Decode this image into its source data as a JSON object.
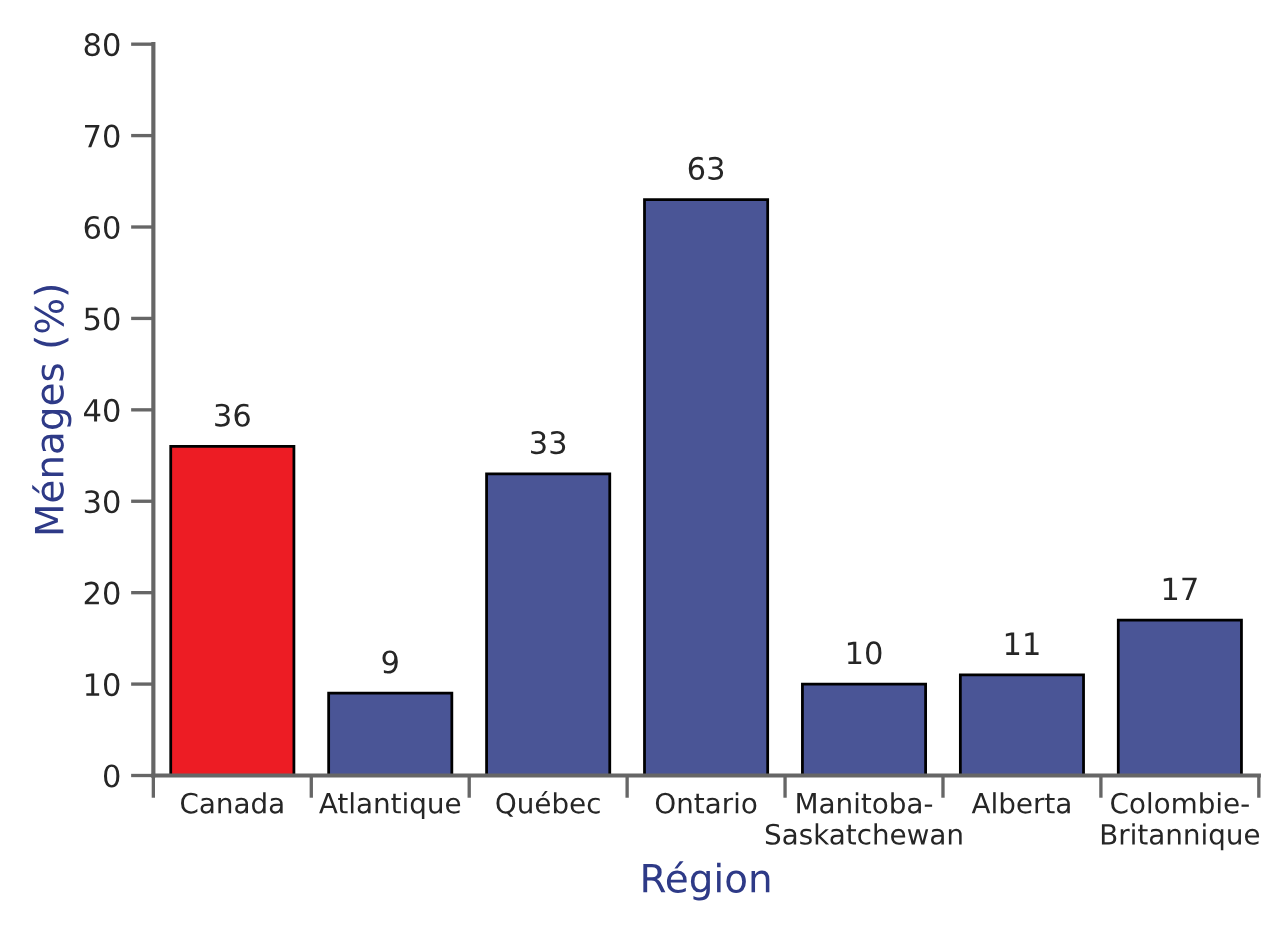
{
  "chart_data": {
    "type": "bar",
    "xlabel": "Région",
    "ylabel": "Ménages (%)",
    "categories": [
      "Canada",
      "Atlantique",
      "Québec",
      "Ontario",
      "Manitoba-\nSaskatchewan",
      "Alberta",
      "Colombie-\nBritannique"
    ],
    "values": [
      36,
      9,
      33,
      63,
      10,
      11,
      17
    ],
    "colors": [
      "#ed1c24",
      "#4a5596",
      "#4a5596",
      "#4a5596",
      "#4a5596",
      "#4a5596",
      "#4a5596"
    ],
    "ylim": [
      0,
      80
    ],
    "yticks": [
      0,
      10,
      20,
      30,
      40,
      50,
      60,
      70,
      80
    ],
    "grid": false,
    "data_labels": true
  }
}
